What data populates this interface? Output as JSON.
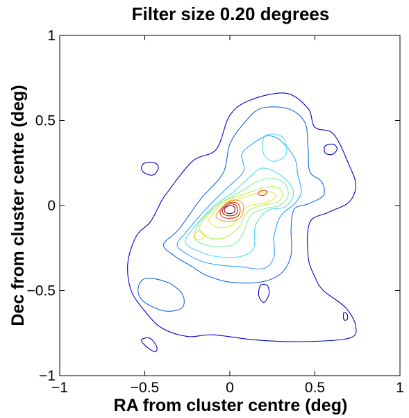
{
  "chart_data": {
    "type": "contour",
    "title": "Filter size 0.20 degrees",
    "xlabel": "RA from cluster centre (deg)",
    "ylabel": "Dec from cluster centre (deg)",
    "xlim": [
      -1,
      1
    ],
    "ylim": [
      -1,
      1
    ],
    "xticks": [
      -1,
      -0.5,
      0,
      0.5,
      1
    ],
    "yticks": [
      -1,
      -0.5,
      0,
      0.5,
      1
    ],
    "xtick_labels": [
      "−1",
      "−0.5",
      "0",
      "0.5",
      "1"
    ],
    "ytick_labels": [
      "−1",
      "−0.5",
      "0",
      "0.5",
      "1"
    ],
    "grid": false,
    "colormap": "jet",
    "contours": [
      {
        "level": 1,
        "color": "#0000c8",
        "points": [
          [
            -0.22,
            0.26
          ],
          [
            -0.08,
            0.33
          ],
          [
            0.0,
            0.53
          ],
          [
            0.12,
            0.62
          ],
          [
            0.33,
            0.66
          ],
          [
            0.46,
            0.57
          ],
          [
            0.5,
            0.46
          ],
          [
            0.61,
            0.42
          ],
          [
            0.7,
            0.24
          ],
          [
            0.74,
            0.12
          ],
          [
            0.7,
            0.02
          ],
          [
            0.58,
            -0.04
          ],
          [
            0.47,
            -0.1
          ],
          [
            0.46,
            -0.3
          ],
          [
            0.5,
            -0.42
          ],
          [
            0.55,
            -0.5
          ],
          [
            0.68,
            -0.6
          ],
          [
            0.74,
            -0.71
          ],
          [
            0.7,
            -0.78
          ],
          [
            0.42,
            -0.8
          ],
          [
            0.15,
            -0.79
          ],
          [
            -0.1,
            -0.76
          ],
          [
            -0.25,
            -0.77
          ],
          [
            -0.4,
            -0.72
          ],
          [
            -0.5,
            -0.62
          ],
          [
            -0.58,
            -0.5
          ],
          [
            -0.6,
            -0.34
          ],
          [
            -0.55,
            -0.18
          ],
          [
            -0.47,
            -0.1
          ],
          [
            -0.42,
            -0.01
          ],
          [
            -0.38,
            0.06
          ]
        ]
      },
      {
        "level": 1,
        "color": "#0000c8",
        "points": [
          [
            -0.5,
            0.25
          ],
          [
            -0.44,
            0.25
          ],
          [
            -0.42,
            0.22
          ],
          [
            -0.45,
            0.18
          ],
          [
            -0.5,
            0.19
          ],
          [
            -0.52,
            0.22
          ]
        ]
      },
      {
        "level": 1,
        "color": "#0000c8",
        "points": [
          [
            0.56,
            0.35
          ],
          [
            0.61,
            0.36
          ],
          [
            0.63,
            0.33
          ],
          [
            0.6,
            0.3
          ],
          [
            0.56,
            0.31
          ]
        ]
      },
      {
        "level": 1,
        "color": "#0000c8",
        "points": [
          [
            -0.52,
            -0.79
          ],
          [
            -0.47,
            -0.78
          ],
          [
            -0.43,
            -0.83
          ],
          [
            -0.44,
            -0.86
          ],
          [
            -0.49,
            -0.83
          ]
        ]
      },
      {
        "level": 1,
        "color": "#0000c8",
        "points": [
          [
            0.18,
            -0.47
          ],
          [
            0.22,
            -0.47
          ],
          [
            0.23,
            -0.52
          ],
          [
            0.2,
            -0.57
          ],
          [
            0.17,
            -0.53
          ]
        ]
      },
      {
        "level": 1,
        "color": "#0000c8",
        "points": [
          [
            0.67,
            -0.63
          ],
          [
            0.69,
            -0.64
          ],
          [
            0.69,
            -0.67
          ],
          [
            0.67,
            -0.67
          ]
        ]
      },
      {
        "level": 2,
        "color": "#1464e6",
        "points": [
          [
            -0.3,
            -0.14
          ],
          [
            -0.17,
            0.04
          ],
          [
            -0.04,
            0.19
          ],
          [
            0.0,
            0.36
          ],
          [
            0.08,
            0.48
          ],
          [
            0.18,
            0.57
          ],
          [
            0.34,
            0.57
          ],
          [
            0.44,
            0.49
          ],
          [
            0.46,
            0.34
          ],
          [
            0.47,
            0.2
          ],
          [
            0.54,
            0.14
          ],
          [
            0.55,
            0.06
          ],
          [
            0.46,
            0.01
          ],
          [
            0.38,
            -0.02
          ],
          [
            0.36,
            -0.13
          ],
          [
            0.36,
            -0.29
          ],
          [
            0.3,
            -0.4
          ],
          [
            0.18,
            -0.45
          ],
          [
            0.0,
            -0.45
          ],
          [
            -0.14,
            -0.41
          ],
          [
            -0.22,
            -0.36
          ],
          [
            -0.32,
            -0.3
          ],
          [
            -0.39,
            -0.23
          ]
        ]
      },
      {
        "level": 2,
        "color": "#1464e6",
        "points": [
          [
            -0.5,
            -0.43
          ],
          [
            -0.37,
            -0.45
          ],
          [
            -0.28,
            -0.52
          ],
          [
            -0.28,
            -0.6
          ],
          [
            -0.38,
            -0.62
          ],
          [
            -0.5,
            -0.57
          ],
          [
            -0.54,
            -0.5
          ]
        ]
      },
      {
        "level": 3,
        "color": "#32a0ff",
        "points": [
          [
            -0.26,
            -0.16
          ],
          [
            -0.14,
            -0.02
          ],
          [
            -0.03,
            0.09
          ],
          [
            0.08,
            0.2
          ],
          [
            0.07,
            0.3
          ],
          [
            0.13,
            0.36
          ],
          [
            0.22,
            0.41
          ],
          [
            0.3,
            0.38
          ],
          [
            0.38,
            0.28
          ],
          [
            0.4,
            0.18
          ],
          [
            0.42,
            0.08
          ],
          [
            0.38,
            0.01
          ],
          [
            0.3,
            -0.06
          ],
          [
            0.26,
            -0.18
          ],
          [
            0.26,
            -0.3
          ],
          [
            0.2,
            -0.37
          ],
          [
            0.06,
            -0.36
          ],
          [
            -0.06,
            -0.35
          ],
          [
            -0.16,
            -0.33
          ],
          [
            -0.26,
            -0.28
          ],
          [
            -0.31,
            -0.23
          ]
        ]
      },
      {
        "level": 4,
        "color": "#50dcf0",
        "points": [
          [
            -0.22,
            -0.14
          ],
          [
            -0.1,
            -0.01
          ],
          [
            0.02,
            0.08
          ],
          [
            0.12,
            0.17
          ],
          [
            0.19,
            0.22
          ],
          [
            0.28,
            0.19
          ],
          [
            0.36,
            0.12
          ],
          [
            0.37,
            0.05
          ],
          [
            0.32,
            -0.01
          ],
          [
            0.22,
            -0.03
          ],
          [
            0.15,
            -0.12
          ],
          [
            0.14,
            -0.25
          ],
          [
            0.06,
            -0.3
          ],
          [
            -0.08,
            -0.3
          ],
          [
            -0.18,
            -0.27
          ],
          [
            -0.26,
            -0.22
          ]
        ]
      },
      {
        "level": 4,
        "color": "#50dcf0",
        "points": [
          [
            0.2,
            0.4
          ],
          [
            0.26,
            0.42
          ],
          [
            0.32,
            0.39
          ],
          [
            0.33,
            0.3
          ],
          [
            0.26,
            0.26
          ],
          [
            0.2,
            0.3
          ]
        ]
      },
      {
        "level": 5,
        "color": "#82f0a0",
        "points": [
          [
            -0.18,
            -0.1
          ],
          [
            -0.06,
            0.01
          ],
          [
            0.06,
            0.08
          ],
          [
            0.16,
            0.14
          ],
          [
            0.26,
            0.16
          ],
          [
            0.33,
            0.12
          ],
          [
            0.34,
            0.05
          ],
          [
            0.29,
            0.0
          ],
          [
            0.2,
            -0.02
          ],
          [
            0.12,
            -0.06
          ],
          [
            0.08,
            -0.16
          ],
          [
            0.02,
            -0.23
          ],
          [
            -0.1,
            -0.24
          ],
          [
            -0.2,
            -0.2
          ]
        ]
      },
      {
        "level": 6,
        "color": "#b4f050",
        "points": [
          [
            -0.15,
            -0.08
          ],
          [
            -0.05,
            0.02
          ],
          [
            0.07,
            0.06
          ],
          [
            0.18,
            0.1
          ],
          [
            0.27,
            0.11
          ],
          [
            0.31,
            0.07
          ],
          [
            0.28,
            0.02
          ],
          [
            0.18,
            0.0
          ],
          [
            0.1,
            -0.04
          ],
          [
            0.05,
            -0.13
          ],
          [
            -0.03,
            -0.19
          ],
          [
            -0.12,
            -0.19
          ],
          [
            -0.18,
            -0.14
          ]
        ]
      },
      {
        "level": 7,
        "color": "#f0e632",
        "points": [
          [
            -0.11,
            -0.06
          ],
          [
            -0.03,
            0.02
          ],
          [
            0.06,
            0.04
          ],
          [
            0.15,
            0.07
          ],
          [
            0.24,
            0.08
          ],
          [
            0.27,
            0.05
          ],
          [
            0.22,
            0.02
          ],
          [
            0.12,
            0.0
          ],
          [
            0.06,
            -0.04
          ],
          [
            0.02,
            -0.11
          ],
          [
            -0.06,
            -0.13
          ],
          [
            -0.12,
            -0.1
          ]
        ]
      },
      {
        "level": 7,
        "color": "#f0e632",
        "points": [
          [
            -0.2,
            -0.16
          ],
          [
            -0.17,
            -0.15
          ],
          [
            -0.15,
            -0.18
          ],
          [
            -0.18,
            -0.2
          ],
          [
            -0.21,
            -0.19
          ]
        ]
      },
      {
        "level": 8,
        "color": "#fa9628",
        "points": [
          [
            -0.07,
            -0.04
          ],
          [
            -0.01,
            0.02
          ],
          [
            0.05,
            0.03
          ],
          [
            0.08,
            0.0
          ],
          [
            0.07,
            -0.06
          ],
          [
            0.03,
            -0.09
          ],
          [
            -0.04,
            -0.09
          ],
          [
            -0.08,
            -0.07
          ]
        ]
      },
      {
        "level": 9,
        "color": "#e63c1e",
        "points": [
          [
            -0.055,
            -0.03
          ],
          [
            -0.01,
            0.015
          ],
          [
            0.04,
            0.015
          ],
          [
            0.06,
            -0.015
          ],
          [
            0.05,
            -0.06
          ],
          [
            0.0,
            -0.075
          ],
          [
            -0.045,
            -0.065
          ]
        ]
      },
      {
        "level": 9,
        "color": "#e63c1e",
        "points": [
          [
            0.17,
            0.08
          ],
          [
            0.2,
            0.09
          ],
          [
            0.22,
            0.08
          ],
          [
            0.2,
            0.06
          ],
          [
            0.17,
            0.065
          ]
        ]
      },
      {
        "level": 10,
        "color": "#b41414",
        "points": [
          [
            -0.04,
            -0.02
          ],
          [
            0.0,
            0.01
          ],
          [
            0.035,
            0.0
          ],
          [
            0.045,
            -0.03
          ],
          [
            0.03,
            -0.055
          ],
          [
            -0.01,
            -0.06
          ],
          [
            -0.04,
            -0.045
          ]
        ]
      },
      {
        "level": 11,
        "color": "#780000",
        "points": [
          [
            -0.028,
            -0.015
          ],
          [
            0.0,
            0.0
          ],
          [
            0.025,
            -0.008
          ],
          [
            0.03,
            -0.03
          ],
          [
            0.015,
            -0.045
          ],
          [
            -0.012,
            -0.046
          ],
          [
            -0.03,
            -0.035
          ]
        ]
      }
    ]
  }
}
